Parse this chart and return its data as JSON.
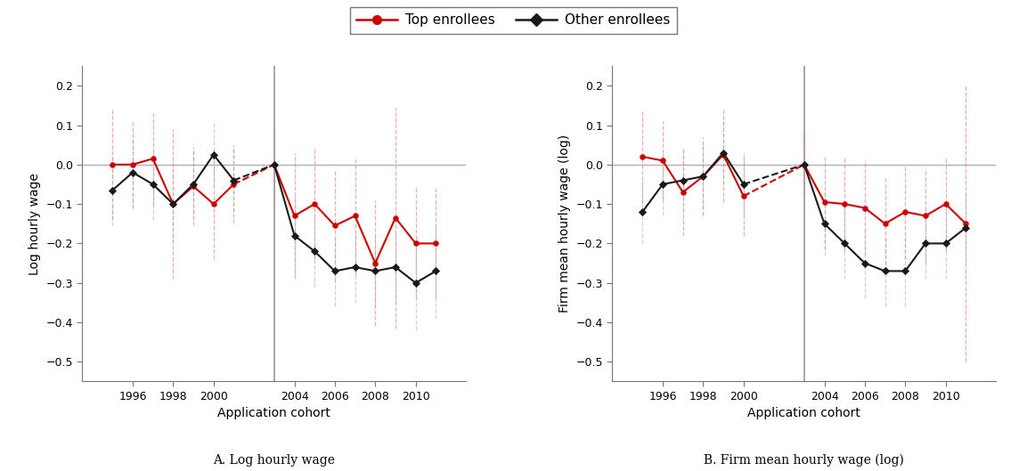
{
  "years_A": [
    1995,
    1996,
    1997,
    1998,
    1999,
    2000,
    2001,
    2003,
    2004,
    2005,
    2006,
    2007,
    2008,
    2009,
    2010,
    2011
  ],
  "A_top": [
    0.0,
    0.0,
    0.015,
    -0.1,
    -0.055,
    -0.1,
    -0.05,
    0.0,
    -0.13,
    -0.1,
    -0.155,
    -0.13,
    -0.25,
    -0.135,
    -0.2,
    -0.2
  ],
  "A_other": [
    -0.065,
    -0.02,
    -0.05,
    -0.1,
    -0.05,
    0.025,
    -0.04,
    0.0,
    -0.18,
    -0.22,
    -0.27,
    -0.26,
    -0.27,
    -0.26,
    -0.3,
    -0.27
  ],
  "A_top_err": [
    0.14,
    0.11,
    0.12,
    0.19,
    0.1,
    0.14,
    0.1,
    0.09,
    0.16,
    0.14,
    0.14,
    0.15,
    0.16,
    0.28,
    0.14,
    0.14
  ],
  "A_other_err": [
    0.09,
    0.09,
    0.09,
    0.1,
    0.09,
    0.08,
    0.08,
    0.08,
    0.1,
    0.09,
    0.09,
    0.09,
    0.09,
    0.09,
    0.12,
    0.12
  ],
  "years_B": [
    1995,
    1996,
    1997,
    1998,
    1999,
    2000,
    2003,
    2004,
    2005,
    2006,
    2007,
    2008,
    2009,
    2010,
    2011
  ],
  "B_top": [
    0.02,
    0.01,
    -0.07,
    -0.03,
    0.025,
    -0.08,
    0.0,
    -0.095,
    -0.1,
    -0.11,
    -0.15,
    -0.12,
    -0.13,
    -0.1,
    -0.15
  ],
  "B_other": [
    -0.12,
    -0.05,
    -0.04,
    -0.03,
    0.03,
    -0.05,
    0.0,
    -0.15,
    -0.2,
    -0.25,
    -0.27,
    -0.27,
    -0.2,
    -0.2,
    -0.16
  ],
  "B_top_err": [
    0.12,
    0.1,
    0.11,
    0.1,
    0.12,
    0.1,
    0.08,
    0.12,
    0.12,
    0.12,
    0.12,
    0.12,
    0.12,
    0.12,
    0.35
  ],
  "B_other_err": [
    0.08,
    0.08,
    0.08,
    0.08,
    0.08,
    0.08,
    0.07,
    0.08,
    0.09,
    0.09,
    0.09,
    0.09,
    0.09,
    0.09,
    0.09
  ],
  "vline_x": 2003,
  "ylim": [
    -0.55,
    0.25
  ],
  "yticks": [
    -0.5,
    -0.4,
    -0.3,
    -0.2,
    -0.1,
    0.0,
    0.1,
    0.2
  ],
  "xtick_positions": [
    1996,
    1998,
    2000,
    2004,
    2006,
    2008,
    2010
  ],
  "xtick_labels": [
    "1996",
    "1998",
    "2000",
    "2004",
    "2006",
    "2008",
    "2010"
  ],
  "xlim": [
    1993.5,
    2012.5
  ],
  "xlabel": "Application cohort",
  "ylabel_A": "Log hourly wage",
  "ylabel_B": "Firm mean hourly wage (log)",
  "caption_A": "A. Log hourly wage",
  "caption_B": "B. Firm mean hourly wage (log)",
  "legend_top": "Top enrollees",
  "legend_other": "Other enrollees",
  "top_color": "#cc0000",
  "other_color": "#1a1a1a",
  "vline_color": "#aaaaaa",
  "hline_color": "#aaaaaa",
  "err_top_color": "#e88080",
  "err_other_color": "#aaaaaa",
  "bg_color": "#ffffff"
}
